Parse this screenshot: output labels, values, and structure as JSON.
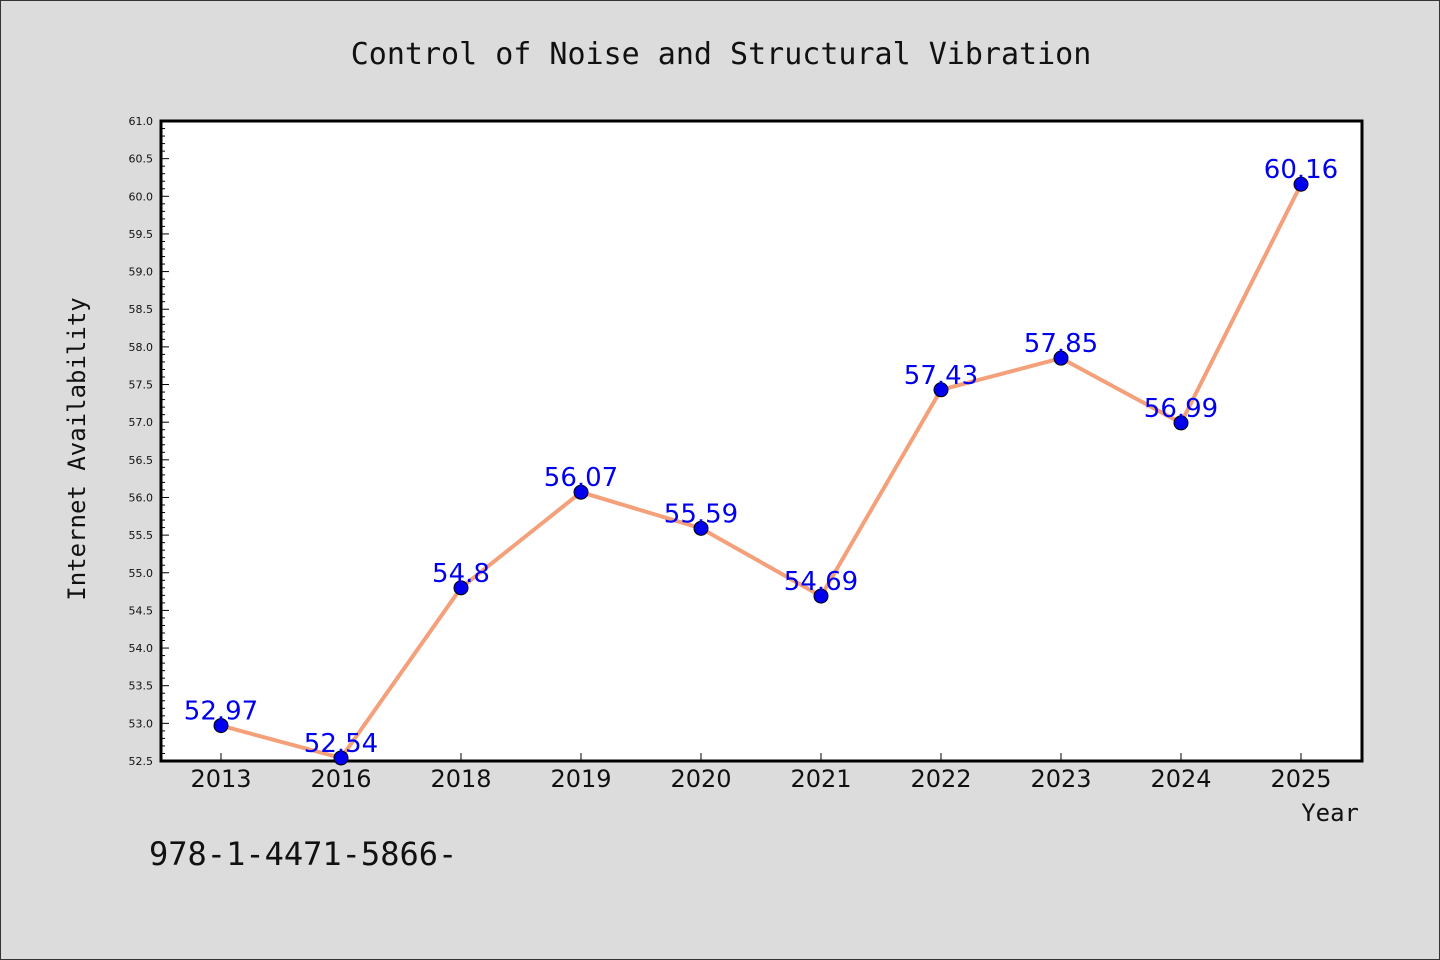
{
  "chart_data": {
    "type": "line",
    "title": "Control of Noise and Structural Vibration",
    "xlabel": "Year",
    "ylabel": "Internet Availability",
    "categories": [
      "2013",
      "2016",
      "2018",
      "2019",
      "2020",
      "2021",
      "2022",
      "2023",
      "2024",
      "2025"
    ],
    "values": [
      52.97,
      52.54,
      54.8,
      56.07,
      55.59,
      54.69,
      57.43,
      57.85,
      56.99,
      60.16
    ],
    "data_labels": [
      "52.97",
      "52.54",
      "54.8",
      "56.07",
      "55.59",
      "54.69",
      "57.43",
      "57.85",
      "56.99",
      "60.16"
    ],
    "ylim": [
      52.5,
      61.0
    ],
    "yticks": [
      "52.5",
      "53.0",
      "53.5",
      "54.0",
      "54.5",
      "55.0",
      "55.5",
      "56.0",
      "56.5",
      "57.0",
      "57.5",
      "58.0",
      "58.5",
      "59.0",
      "59.5",
      "60.0",
      "60.5",
      "61.0"
    ],
    "grid": false,
    "colors": {
      "line": "#f4a07a",
      "marker": "#0000ee",
      "label": "#0000ee",
      "background": "#dcdcdc",
      "plot_area": "#ffffff"
    }
  },
  "footer_text": "978-1-4471-5866-"
}
